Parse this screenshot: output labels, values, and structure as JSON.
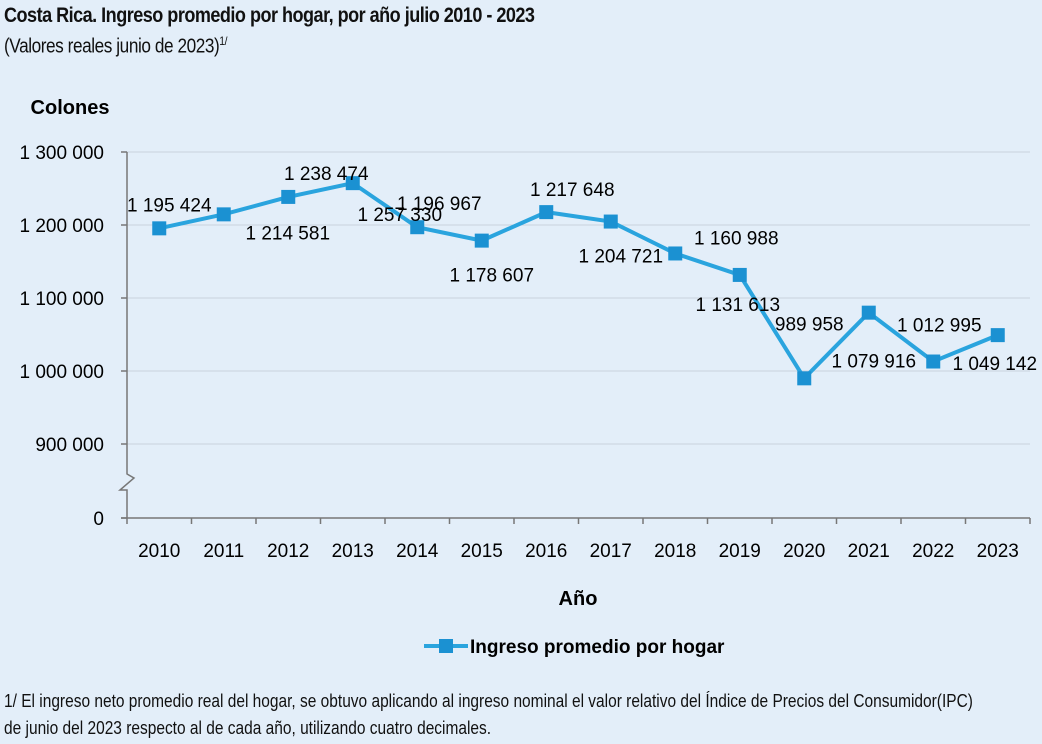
{
  "title": "Costa Rica. Ingreso promedio por hogar, por año julio 2010 - 2023",
  "subtitle": "(Valores reales junio de 2023)",
  "subtitle_note": "1/",
  "footnote": "1/ El ingreso neto promedio real del hogar, se obtuvo aplicando al ingreso nominal el valor relativo del Índice de Precios del Consumidor(IPC) de junio del 2023 respecto al de cada año, utilizando cuatro decimales.",
  "colors": {
    "line": "#2aa4de",
    "marker": "#1b91d2",
    "background": "#e3eef9",
    "grid": "#c9d3dd"
  },
  "chart_data": {
    "type": "line",
    "ylabel": "Colones",
    "xlabel": "Año",
    "ytick_labels": [
      "1 300 000",
      "1 200 000",
      "1 100 000",
      "1 000 000",
      "900 000",
      "0"
    ],
    "yticks": [
      1300000,
      1200000,
      1100000,
      1000000,
      900000,
      0
    ],
    "ylim": [
      900000,
      1300000
    ],
    "axis_break": true,
    "grid": true,
    "legend_position": "bottom",
    "categories": [
      "2010",
      "2011",
      "2012",
      "2013",
      "2014",
      "2015",
      "2016",
      "2017",
      "2018",
      "2019",
      "2020",
      "2021",
      "2022",
      "2023"
    ],
    "series": [
      {
        "name": "Ingreso promedio por hogar",
        "values": [
          1195424,
          1214581,
          1238474,
          1257330,
          1196967,
          1178607,
          1217648,
          1204721,
          1160988,
          1131613,
          989958,
          1079916,
          1012995,
          1049142
        ],
        "labels": [
          "1 195 424",
          "1 214 581",
          "1 238 474",
          "1 257 330",
          "1 196 967",
          "1 178 607",
          "1 217 648",
          "1 204 721",
          "1 160 988",
          "1 131 613",
          "989 958",
          "1 079 916",
          "1 012 995",
          "1 049 142"
        ]
      }
    ]
  }
}
